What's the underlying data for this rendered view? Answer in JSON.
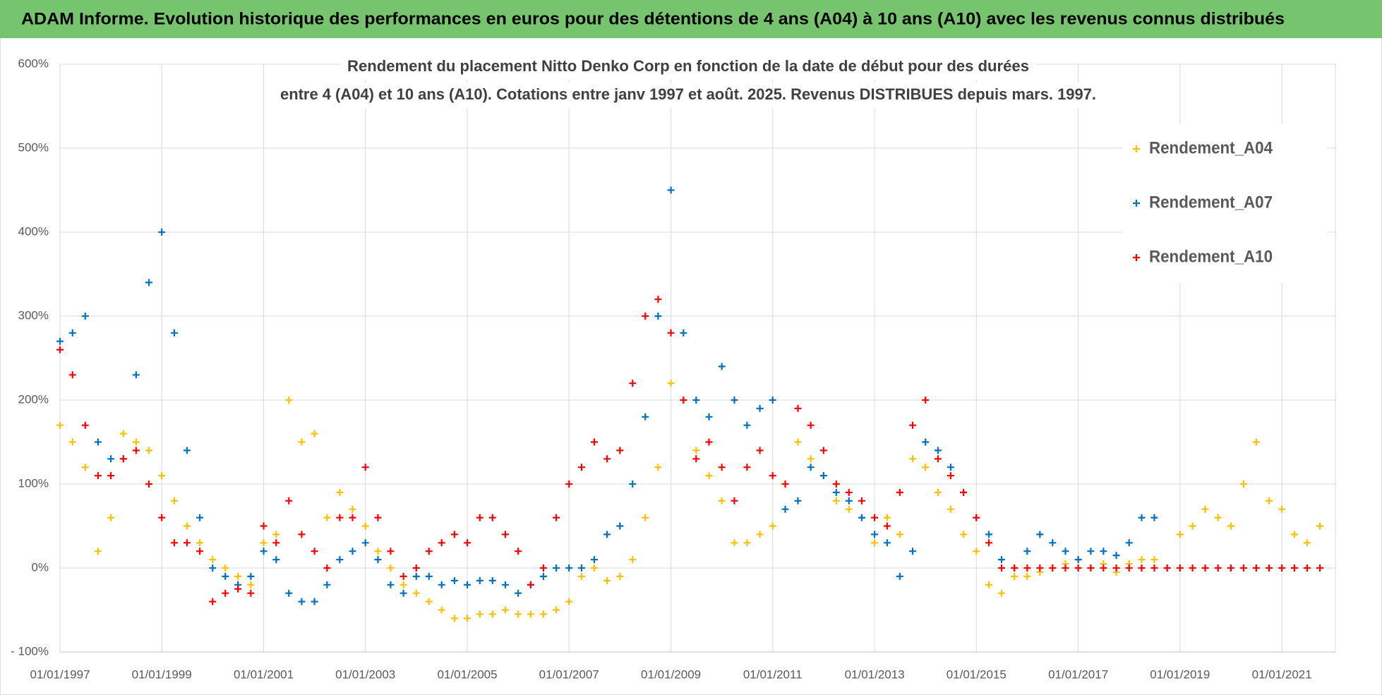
{
  "header": {
    "title": "ADAM Informe. Evolution historique des performances en euros pour des détentions de 4 ans (A04) à 10 ans (A10) avec les revenus connus distribués"
  },
  "chart_data": {
    "type": "scatter",
    "title": [
      "Rendement du placement Nitto Denko Corp en fonction de la date de début pour des durées",
      "entre 4 (A04) et 10 ans (A10). Cotations entre janv 1997 et août. 2025. Revenus DISTRIBUES depuis mars. 1997."
    ],
    "x": [
      "1997-01-01",
      "1997-04-01",
      "1997-07-01",
      "1997-10-01",
      "1998-01-01",
      "1998-04-01",
      "1998-07-01",
      "1998-10-01",
      "1999-01-01",
      "1999-04-01",
      "1999-07-01",
      "1999-10-01",
      "2000-01-01",
      "2000-04-01",
      "2000-07-01",
      "2000-10-01",
      "2001-01-01",
      "2001-04-01",
      "2001-07-01",
      "2001-10-01",
      "2002-01-01",
      "2002-04-01",
      "2002-07-01",
      "2002-10-01",
      "2003-01-01",
      "2003-04-01",
      "2003-07-01",
      "2003-10-01",
      "2004-01-01",
      "2004-04-01",
      "2004-07-01",
      "2004-10-01",
      "2005-01-01",
      "2005-04-01",
      "2005-07-01",
      "2005-10-01",
      "2006-01-01",
      "2006-04-01",
      "2006-07-01",
      "2006-10-01",
      "2007-01-01",
      "2007-04-01",
      "2007-07-01",
      "2007-10-01",
      "2008-01-01",
      "2008-04-01",
      "2008-07-01",
      "2008-10-01",
      "2009-01-01",
      "2009-04-01",
      "2009-07-01",
      "2009-10-01",
      "2010-01-01",
      "2010-04-01",
      "2010-07-01",
      "2010-10-01",
      "2011-01-01",
      "2011-04-01",
      "2011-07-01",
      "2011-10-01",
      "2012-01-01",
      "2012-04-01",
      "2012-07-01",
      "2012-10-01",
      "2013-01-01",
      "2013-04-01",
      "2013-07-01",
      "2013-10-01",
      "2014-01-01",
      "2014-04-01",
      "2014-07-01",
      "2014-10-01",
      "2015-01-01",
      "2015-04-01",
      "2015-07-01",
      "2015-10-01",
      "2016-01-01",
      "2016-04-01",
      "2016-07-01",
      "2016-10-01",
      "2017-01-01",
      "2017-04-01",
      "2017-07-01",
      "2017-10-01",
      "2018-01-01",
      "2018-04-01",
      "2018-07-01",
      "2018-10-01",
      "2019-01-01",
      "2019-04-01",
      "2019-07-01",
      "2019-10-01",
      "2020-01-01",
      "2020-04-01",
      "2020-07-01",
      "2020-10-01",
      "2021-01-01",
      "2021-04-01",
      "2021-07-01",
      "2021-10-01"
    ],
    "series": [
      {
        "name": "Rendement_A04",
        "color": "#ffc000",
        "values": [
          170,
          150,
          120,
          20,
          60,
          160,
          150,
          140,
          110,
          80,
          50,
          30,
          10,
          0,
          -10,
          -20,
          30,
          40,
          200,
          150,
          160,
          60,
          90,
          70,
          50,
          20,
          0,
          -20,
          -30,
          -40,
          -50,
          -60,
          -60,
          -55,
          -55,
          -50,
          -55,
          -55,
          -55,
          -50,
          -40,
          -10,
          0,
          -15,
          -10,
          10,
          60,
          120,
          220,
          200,
          140,
          110,
          80,
          30,
          30,
          40,
          50,
          100,
          150,
          130,
          110,
          80,
          70,
          60,
          30,
          60,
          40,
          130,
          120,
          90,
          70,
          40,
          20,
          -20,
          -30,
          -10,
          -10,
          -5,
          0,
          5,
          10,
          0,
          5,
          -5,
          5,
          10,
          10,
          0,
          40,
          50,
          70,
          60,
          50,
          100,
          150,
          80,
          70,
          40,
          30,
          50
        ]
      },
      {
        "name": "Rendement_A07",
        "color": "#0070c0",
        "values": [
          270,
          280,
          300,
          150,
          130,
          130,
          230,
          340,
          400,
          280,
          140,
          60,
          0,
          -10,
          -20,
          -10,
          20,
          10,
          -30,
          -40,
          -40,
          -20,
          10,
          20,
          30,
          10,
          -20,
          -30,
          -10,
          -10,
          -20,
          -15,
          -20,
          -15,
          -15,
          -20,
          -30,
          -20,
          -10,
          0,
          0,
          0,
          10,
          40,
          50,
          100,
          180,
          300,
          450,
          280,
          200,
          180,
          240,
          200,
          170,
          190,
          200,
          70,
          80,
          120,
          110,
          90,
          80,
          60,
          40,
          30,
          -10,
          20,
          150,
          140,
          120,
          90,
          60,
          40,
          10,
          0,
          20,
          40,
          30,
          20,
          10,
          20,
          20,
          15,
          30,
          60,
          60,
          null,
          null,
          null,
          null,
          null,
          null,
          null,
          null,
          null,
          null,
          null,
          null,
          null
        ]
      },
      {
        "name": "Rendement_A10",
        "color": "#ff0000",
        "values": [
          260,
          230,
          170,
          110,
          110,
          130,
          140,
          100,
          60,
          30,
          30,
          20,
          -40,
          -30,
          -25,
          -30,
          50,
          30,
          80,
          40,
          20,
          0,
          60,
          60,
          120,
          60,
          20,
          -10,
          0,
          20,
          30,
          40,
          30,
          60,
          60,
          40,
          20,
          -20,
          0,
          60,
          100,
          120,
          150,
          130,
          140,
          220,
          300,
          320,
          280,
          200,
          130,
          150,
          120,
          80,
          120,
          140,
          110,
          100,
          190,
          170,
          140,
          100,
          90,
          80,
          60,
          50,
          90,
          170,
          200,
          130,
          110,
          90,
          60,
          30,
          0,
          0,
          0,
          0,
          0,
          0,
          0,
          0,
          0,
          0,
          0,
          0,
          0,
          0,
          0,
          0,
          0,
          0,
          0,
          0,
          0,
          0,
          0,
          0,
          0,
          0
        ]
      }
    ],
    "xlim": [
      "1997-01-01",
      "2022-01-20"
    ],
    "xticks": [
      {
        "value": "1997-01-01",
        "label": "01/01/1997"
      },
      {
        "value": "1999-01-01",
        "label": "01/01/1999"
      },
      {
        "value": "2001-01-01",
        "label": "01/01/2001"
      },
      {
        "value": "2003-01-01",
        "label": "01/01/2003"
      },
      {
        "value": "2005-01-01",
        "label": "01/01/2005"
      },
      {
        "value": "2007-01-01",
        "label": "01/01/2007"
      },
      {
        "value": "2009-01-01",
        "label": "01/01/2009"
      },
      {
        "value": "2011-01-01",
        "label": "01/01/2011"
      },
      {
        "value": "2013-01-01",
        "label": "01/01/2013"
      },
      {
        "value": "2015-01-01",
        "label": "01/01/2015"
      },
      {
        "value": "2017-01-01",
        "label": "01/01/2017"
      },
      {
        "value": "2019-01-01",
        "label": "01/01/2019"
      },
      {
        "value": "2021-01-01",
        "label": "01/01/2021"
      }
    ],
    "ylim": [
      -100,
      600
    ],
    "yticks": [
      {
        "value": -100,
        "label": "- 100%"
      },
      {
        "value": 0,
        "label": "0%"
      },
      {
        "value": 100,
        "label": "100%"
      },
      {
        "value": 200,
        "label": "200%"
      },
      {
        "value": 300,
        "label": "300%"
      },
      {
        "value": 400,
        "label": "400%"
      },
      {
        "value": 500,
        "label": "500%"
      },
      {
        "value": 600,
        "label": "600%"
      }
    ],
    "grid": true,
    "legend": "upper right"
  }
}
